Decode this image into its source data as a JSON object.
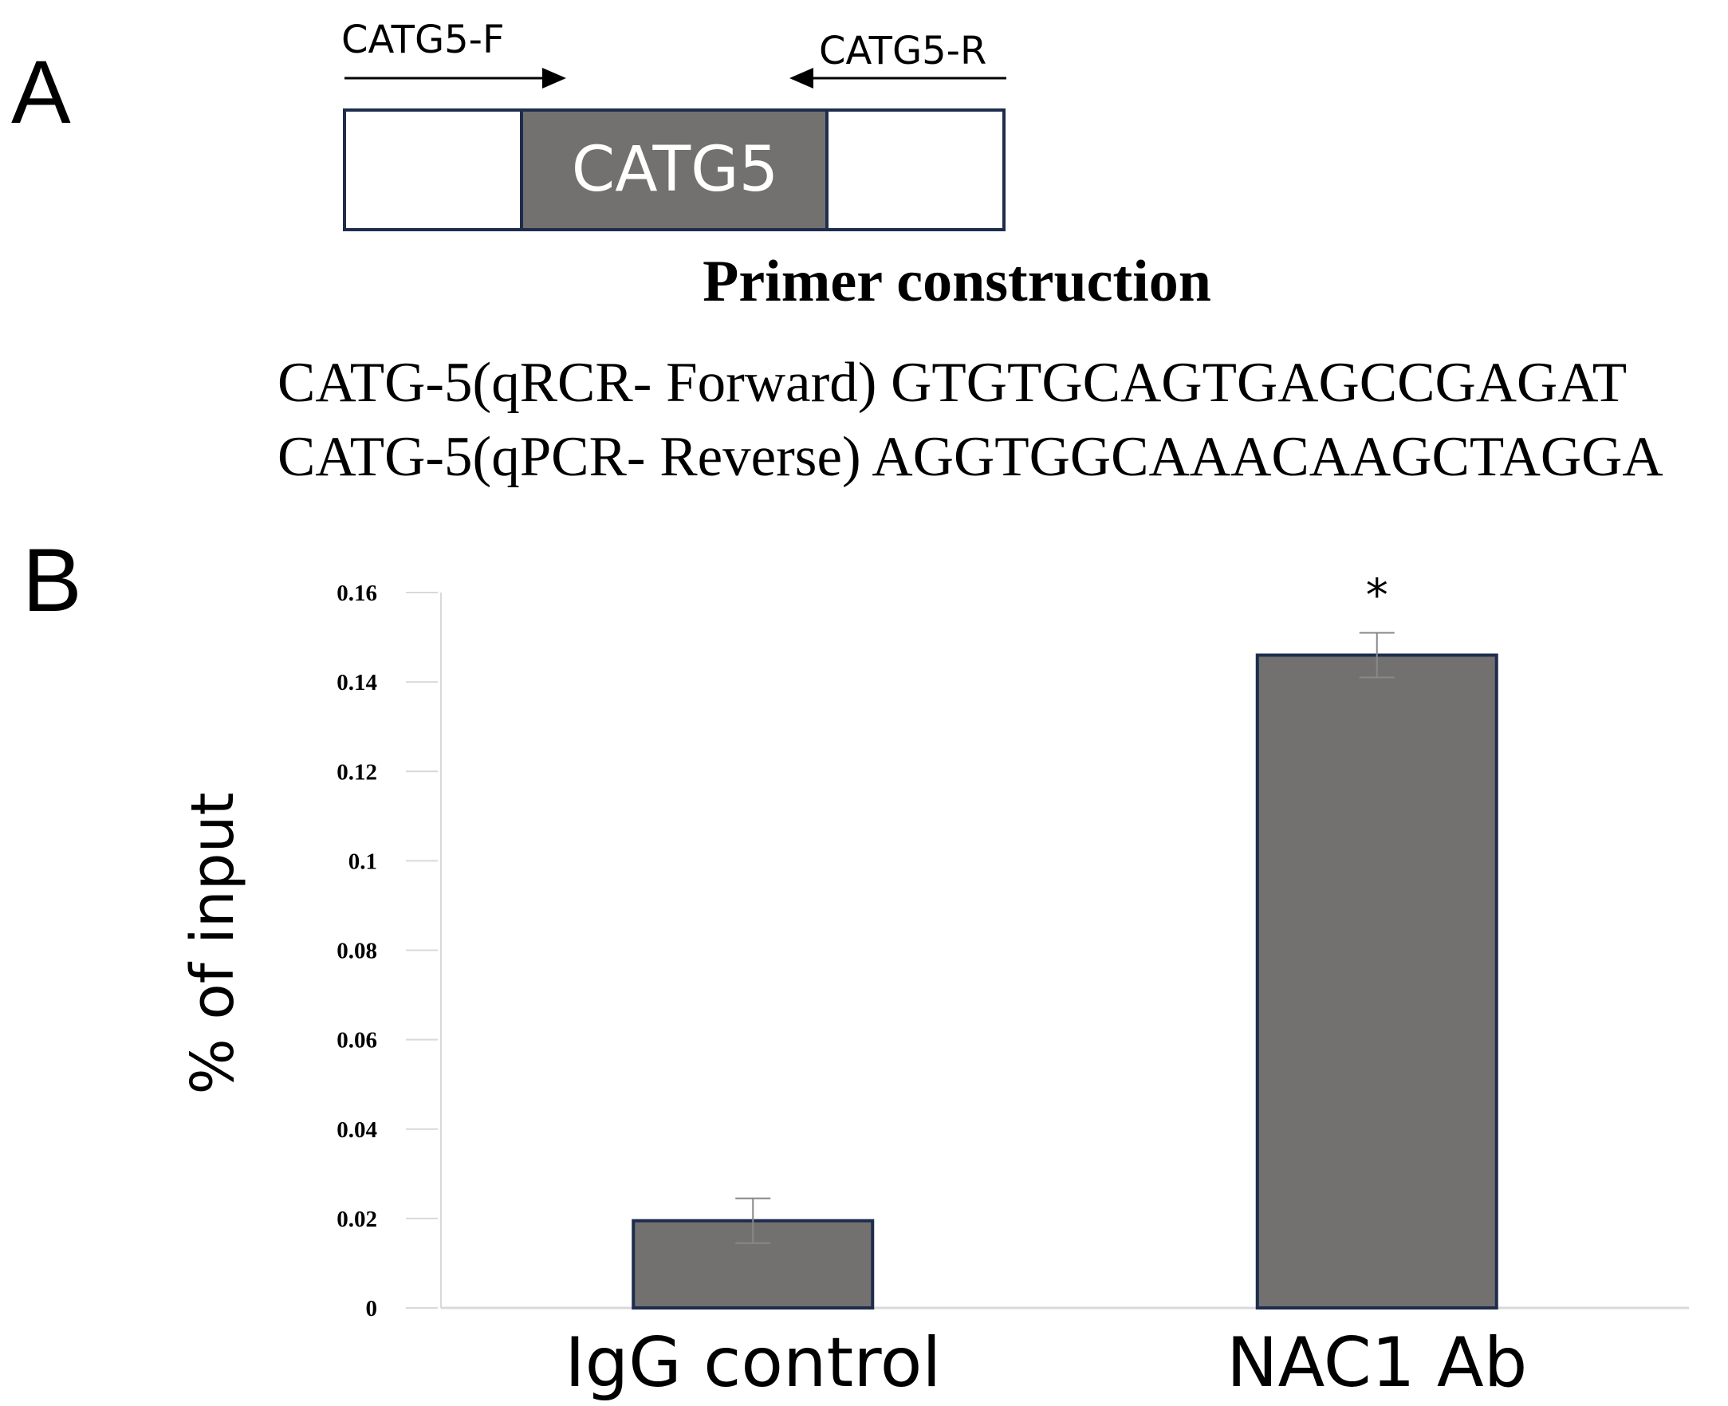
{
  "panels": {
    "a": "A",
    "b": "B"
  },
  "primer_diagram": {
    "forward_label": "CATG5-F",
    "reverse_label": "CATG5-R",
    "gene_label": "CATG5",
    "title": "Primer construction",
    "sequences": [
      "CATG-5(qRCR- Forward) GTGTGCAGTGAGCCGAGAT",
      "CATG-5(qPCR- Reverse) AGGTGGCAAACAAGCTAGGA"
    ]
  },
  "colors": {
    "bar_fill": "#737070",
    "bar_border": "#1e2d4d",
    "axis": "#d9d9d9",
    "gene_border": "#1e2d4d"
  },
  "chart_data": {
    "type": "bar",
    "categories": [
      "IgG control",
      "NAC1 Ab"
    ],
    "values": [
      0.0195,
      0.146
    ],
    "error": [
      0.005,
      0.005
    ],
    "significance": [
      "",
      "*"
    ],
    "ylabel": "% of input",
    "xlabel": "",
    "ylim": [
      0,
      0.16
    ],
    "yticks": [
      0,
      0.02,
      0.04,
      0.06,
      0.08,
      0.1,
      0.12,
      0.14,
      0.16
    ],
    "ytick_labels": [
      "0",
      "0.02",
      "0.04",
      "0.06",
      "0.08",
      "0.1",
      "0.12",
      "0.14",
      "0.16"
    ],
    "grid": false,
    "legend": "none"
  }
}
